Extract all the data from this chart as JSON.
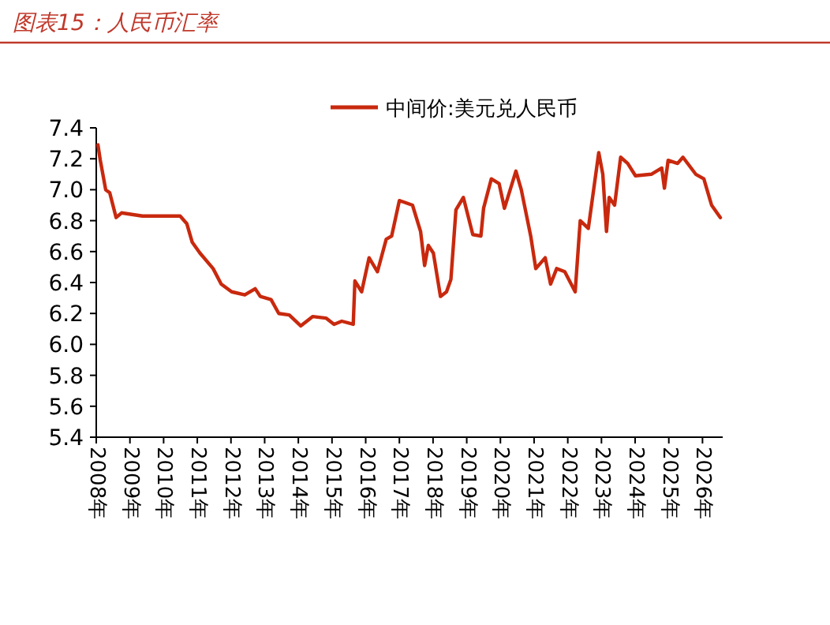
{
  "chart_data": {
    "type": "line",
    "title": "图表15：人民币汇率",
    "series": [
      {
        "name": "中间价:美元兑人民币",
        "color": "#c8290e",
        "x": [
          2008.05,
          2008.12,
          2008.28,
          2008.4,
          2008.59,
          2008.75,
          2009.37,
          2010.49,
          2010.69,
          2010.85,
          2011.08,
          2011.47,
          2011.71,
          2012.02,
          2012.41,
          2012.72,
          2012.87,
          2013.19,
          2013.42,
          2013.73,
          2014.07,
          2014.43,
          2014.82,
          2015.06,
          2015.29,
          2015.63,
          2015.68,
          2015.88,
          2016.1,
          2016.35,
          2016.61,
          2016.77,
          2017.0,
          2017.39,
          2017.63,
          2017.75,
          2017.86,
          2018.01,
          2018.22,
          2018.4,
          2018.53,
          2018.68,
          2018.9,
          2019.18,
          2019.42,
          2019.5,
          2019.73,
          2019.96,
          2020.12,
          2020.46,
          2020.62,
          2020.9,
          2021.05,
          2021.33,
          2021.49,
          2021.67,
          2021.91,
          2022.22,
          2022.37,
          2022.61,
          2022.92,
          2023.04,
          2023.15,
          2023.23,
          2023.39,
          2023.57,
          2023.78,
          2024.01,
          2024.48,
          2024.79,
          2024.87,
          2024.98,
          2025.26,
          2025.42,
          2025.8,
          2026.04,
          2026.27,
          2026.53
        ],
        "values": [
          7.29,
          7.19,
          7.0,
          6.98,
          6.82,
          6.85,
          6.83,
          6.83,
          6.78,
          6.66,
          6.59,
          6.49,
          6.39,
          6.34,
          6.32,
          6.36,
          6.31,
          6.29,
          6.2,
          6.19,
          6.12,
          6.18,
          6.17,
          6.13,
          6.15,
          6.13,
          6.41,
          6.34,
          6.56,
          6.47,
          6.68,
          6.7,
          6.93,
          6.9,
          6.73,
          6.51,
          6.64,
          6.59,
          6.31,
          6.34,
          6.42,
          6.87,
          6.95,
          6.71,
          6.7,
          6.88,
          7.07,
          7.04,
          6.88,
          7.12,
          7.0,
          6.7,
          6.49,
          6.56,
          6.39,
          6.49,
          6.47,
          6.34,
          6.8,
          6.75,
          7.24,
          7.1,
          6.73,
          6.95,
          6.9,
          7.21,
          7.17,
          7.09,
          7.1,
          7.14,
          7.01,
          7.19,
          7.17,
          7.21,
          7.1,
          7.07,
          6.9,
          6.82
        ]
      }
    ],
    "xlim": [
      2008,
      2026.6
    ],
    "xticks": [
      {
        "value": 2008,
        "label": "2008年"
      },
      {
        "value": 2009,
        "label": "2009年"
      },
      {
        "value": 2010,
        "label": "2010年"
      },
      {
        "value": 2011,
        "label": "2011年"
      },
      {
        "value": 2012,
        "label": "2012年"
      },
      {
        "value": 2013,
        "label": "2013年"
      },
      {
        "value": 2014,
        "label": "2014年"
      },
      {
        "value": 2015,
        "label": "2015年"
      },
      {
        "value": 2016,
        "label": "2016年"
      },
      {
        "value": 2017,
        "label": "2017年"
      },
      {
        "value": 2018,
        "label": "2018年"
      },
      {
        "value": 2019,
        "label": "2019年"
      },
      {
        "value": 2020,
        "label": "2020年"
      },
      {
        "value": 2021,
        "label": "2021年"
      },
      {
        "value": 2022,
        "label": "2022年"
      },
      {
        "value": 2023,
        "label": "2023年"
      },
      {
        "value": 2024,
        "label": "2024年"
      },
      {
        "value": 2025,
        "label": "2025年"
      },
      {
        "value": 2026,
        "label": "2026年"
      }
    ],
    "ylim": [
      5.4,
      7.4
    ],
    "yticks": [
      {
        "value": 5.4,
        "label": "5.4"
      },
      {
        "value": 5.6,
        "label": "5.6"
      },
      {
        "value": 5.8,
        "label": "5.8"
      },
      {
        "value": 6.0,
        "label": "6.0"
      },
      {
        "value": 6.2,
        "label": "6.2"
      },
      {
        "value": 6.4,
        "label": "6.4"
      },
      {
        "value": 6.6,
        "label": "6.6"
      },
      {
        "value": 6.8,
        "label": "6.8"
      },
      {
        "value": 7.0,
        "label": "7.0"
      },
      {
        "value": 7.2,
        "label": "7.2"
      },
      {
        "value": 7.4,
        "label": "7.4"
      }
    ],
    "grid": false,
    "legend": "top",
    "marker": "none",
    "line_style": "solid"
  }
}
